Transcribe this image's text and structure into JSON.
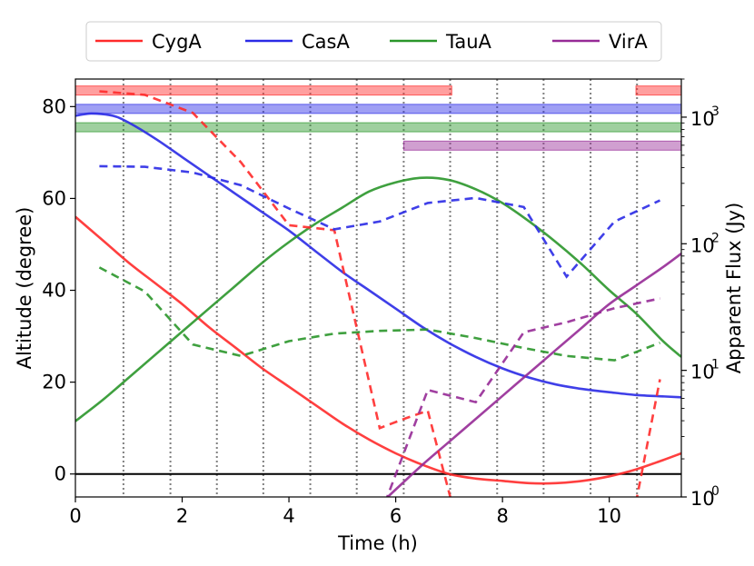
{
  "chart_data": {
    "type": "line",
    "xlabel": "Time (h)",
    "ylabel": "Altitude (degree)",
    "y2label": "Apparent Flux (Jy)",
    "xlim": [
      0,
      11.35
    ],
    "ylim": [
      -5,
      86
    ],
    "y2lim_log": [
      1,
      2000
    ],
    "xticks": [
      0,
      2,
      4,
      6,
      8,
      10
    ],
    "yticks": [
      0,
      20,
      40,
      60,
      80
    ],
    "y2ticks": [
      {
        "value": 1,
        "label": "10",
        "exp": "0"
      },
      {
        "value": 10,
        "label": "10",
        "exp": "1"
      },
      {
        "value": 100,
        "label": "10",
        "exp": "2"
      },
      {
        "value": 1000,
        "label": "10",
        "exp": "3"
      }
    ],
    "legend": {
      "position": "top",
      "entries": [
        {
          "name": "CygA",
          "color": "#ff2a2a"
        },
        {
          "name": "CasA",
          "color": "#2a2ae6"
        },
        {
          "name": "TauA",
          "color": "#2a962a"
        },
        {
          "name": "VirA",
          "color": "#962a96"
        }
      ]
    },
    "vlines_x": [
      0.9,
      1.78,
      2.65,
      3.52,
      4.4,
      5.27,
      6.15,
      7.02,
      7.9,
      8.77,
      9.65,
      10.52
    ],
    "zero_line_y": 0,
    "altitude_series": [
      {
        "name": "CygA",
        "color": "#ff2a2a",
        "points": [
          [
            0,
            56
          ],
          [
            0.5,
            51
          ],
          [
            1,
            46
          ],
          [
            1.5,
            41.5
          ],
          [
            2,
            37
          ],
          [
            2.5,
            32
          ],
          [
            3,
            27.5
          ],
          [
            3.5,
            23
          ],
          [
            4,
            19
          ],
          [
            4.5,
            15
          ],
          [
            5,
            11
          ],
          [
            5.5,
            7.5
          ],
          [
            6,
            4.5
          ],
          [
            6.5,
            2
          ],
          [
            7,
            0
          ],
          [
            7.5,
            -1
          ],
          [
            8,
            -1.5
          ],
          [
            8.5,
            -2
          ],
          [
            9,
            -2
          ],
          [
            9.5,
            -1.5
          ],
          [
            10,
            -0.5
          ],
          [
            10.5,
            1
          ],
          [
            11,
            3
          ],
          [
            11.35,
            4.5
          ]
        ]
      },
      {
        "name": "CasA",
        "color": "#2a2ae6",
        "points": [
          [
            0,
            78
          ],
          [
            0.3,
            78.5
          ],
          [
            0.7,
            78
          ],
          [
            1,
            76.5
          ],
          [
            1.5,
            73
          ],
          [
            2,
            69
          ],
          [
            2.5,
            65
          ],
          [
            3,
            61
          ],
          [
            3.5,
            57
          ],
          [
            4,
            53
          ],
          [
            4.5,
            48.5
          ],
          [
            5,
            44
          ],
          [
            5.5,
            40
          ],
          [
            6,
            36
          ],
          [
            6.5,
            32
          ],
          [
            7,
            28.5
          ],
          [
            7.5,
            25.5
          ],
          [
            8,
            23
          ],
          [
            8.5,
            21
          ],
          [
            9,
            19.5
          ],
          [
            9.5,
            18.5
          ],
          [
            10,
            17.8
          ],
          [
            10.5,
            17.2
          ],
          [
            11,
            16.9
          ],
          [
            11.35,
            16.7
          ]
        ]
      },
      {
        "name": "TauA",
        "color": "#2a962a",
        "points": [
          [
            0,
            11.5
          ],
          [
            0.5,
            16
          ],
          [
            1,
            21
          ],
          [
            1.5,
            26
          ],
          [
            2,
            31
          ],
          [
            2.5,
            36
          ],
          [
            3,
            41
          ],
          [
            3.5,
            46
          ],
          [
            4,
            50.5
          ],
          [
            4.5,
            54.5
          ],
          [
            5,
            58
          ],
          [
            5.5,
            61.5
          ],
          [
            6,
            63.5
          ],
          [
            6.5,
            64.5
          ],
          [
            7,
            64
          ],
          [
            7.5,
            62
          ],
          [
            8,
            59
          ],
          [
            8.5,
            55
          ],
          [
            9,
            50.5
          ],
          [
            9.5,
            45.5
          ],
          [
            10,
            40
          ],
          [
            10.5,
            35
          ],
          [
            11,
            29
          ],
          [
            11.35,
            25.5
          ]
        ]
      },
      {
        "name": "VirA",
        "color": "#962a96",
        "points": [
          [
            5.85,
            -5
          ],
          [
            6.5,
            2
          ],
          [
            7,
            7
          ],
          [
            7.5,
            12
          ],
          [
            8,
            17
          ],
          [
            8.5,
            22
          ],
          [
            9,
            27
          ],
          [
            9.5,
            32
          ],
          [
            10,
            37
          ],
          [
            10.5,
            41
          ],
          [
            11,
            45
          ],
          [
            11.35,
            48
          ]
        ]
      }
    ],
    "flux_series": [
      {
        "name": "CygA",
        "color": "#ff2a2a",
        "points": [
          [
            0.45,
            1600
          ],
          [
            1.3,
            1500
          ],
          [
            2.2,
            1080
          ],
          [
            3.1,
            440
          ],
          [
            4,
            140
          ],
          [
            4.85,
            128
          ],
          [
            5.7,
            3.5
          ],
          [
            6.2,
            4.2
          ],
          [
            6.6,
            4.8
          ],
          [
            7.05,
            0.9
          ]
        ]
      },
      {
        "name": "CygA (late)",
        "color": "#ff2a2a",
        "points": [
          [
            10.5,
            0.9
          ],
          [
            10.95,
            8.5
          ]
        ]
      },
      {
        "name": "CasA",
        "color": "#2a2ae6",
        "points": [
          [
            0.45,
            410
          ],
          [
            1.3,
            405
          ],
          [
            2.2,
            365
          ],
          [
            3.1,
            290
          ],
          [
            4,
            190
          ],
          [
            4.85,
            130
          ],
          [
            5.7,
            150
          ],
          [
            6.6,
            210
          ],
          [
            7.5,
            230
          ],
          [
            8.4,
            195
          ],
          [
            9.2,
            55
          ],
          [
            10.1,
            150
          ],
          [
            10.95,
            220
          ]
        ]
      },
      {
        "name": "TauA",
        "color": "#2a962a",
        "points": [
          [
            0.45,
            65
          ],
          [
            1.3,
            42
          ],
          [
            2.2,
            16
          ],
          [
            3.1,
            13
          ],
          [
            4,
            17
          ],
          [
            4.85,
            19.5
          ],
          [
            5.7,
            20.5
          ],
          [
            6.6,
            21
          ],
          [
            7.5,
            18
          ],
          [
            8.4,
            15
          ],
          [
            9.2,
            13
          ],
          [
            10.1,
            12
          ],
          [
            10.95,
            16.5
          ]
        ]
      },
      {
        "name": "VirA",
        "color": "#962a96",
        "points": [
          [
            5.8,
            0.9
          ],
          [
            6.6,
            7
          ],
          [
            7.5,
            5.6
          ],
          [
            8.4,
            20
          ],
          [
            9.2,
            24
          ],
          [
            10.1,
            31
          ],
          [
            10.95,
            37
          ]
        ]
      }
    ],
    "observability_bars": [
      {
        "name": "CygA",
        "color": "#ff2a2a",
        "y": 83.5,
        "ranges": [
          [
            0,
            7.05
          ],
          [
            10.5,
            11.35
          ]
        ]
      },
      {
        "name": "CasA",
        "color": "#2a2ae6",
        "y": 79.5,
        "ranges": [
          [
            0,
            11.35
          ]
        ]
      },
      {
        "name": "TauA",
        "color": "#2a962a",
        "y": 75.5,
        "ranges": [
          [
            0,
            11.35
          ]
        ]
      },
      {
        "name": "VirA",
        "color": "#962a96",
        "y": 71.5,
        "ranges": [
          [
            6.15,
            11.35
          ]
        ]
      }
    ]
  }
}
